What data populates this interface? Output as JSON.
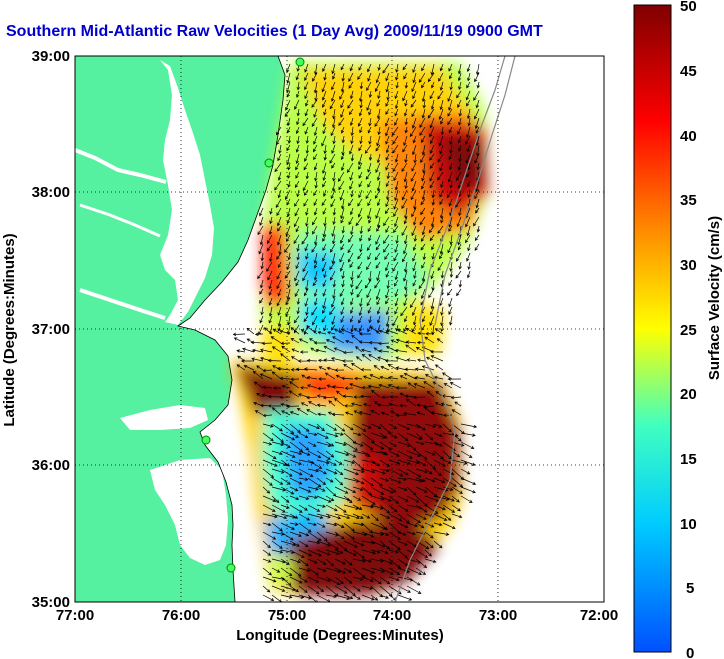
{
  "title": "Southern Mid-Atlantic Raw Velocities (1 Day Avg) 2009/11/19 0900 GMT",
  "map": {
    "xlabel": "Longitude (Degrees:Minutes)",
    "ylabel": "Latitude (Degrees:Minutes)",
    "x_ticks": [
      "77:00",
      "76:00",
      "75:00",
      "74:00",
      "73:00",
      "72:00"
    ],
    "y_ticks": [
      "39:00",
      "38:00",
      "37:00",
      "36:00",
      "35:00"
    ],
    "lon_range": [
      -77,
      -72
    ],
    "lat_range": [
      35,
      39
    ],
    "land_color": "#55f0a0",
    "water_color": "#ffffff",
    "grid": "dotted"
  },
  "colorbar": {
    "label": "Surface Velocity (cm/s)",
    "ticks": [
      "50",
      "45",
      "40",
      "35",
      "30",
      "25",
      "20",
      "15",
      "10",
      "5",
      "0"
    ],
    "range": [
      0,
      50
    ],
    "colormap": "jet"
  }
}
